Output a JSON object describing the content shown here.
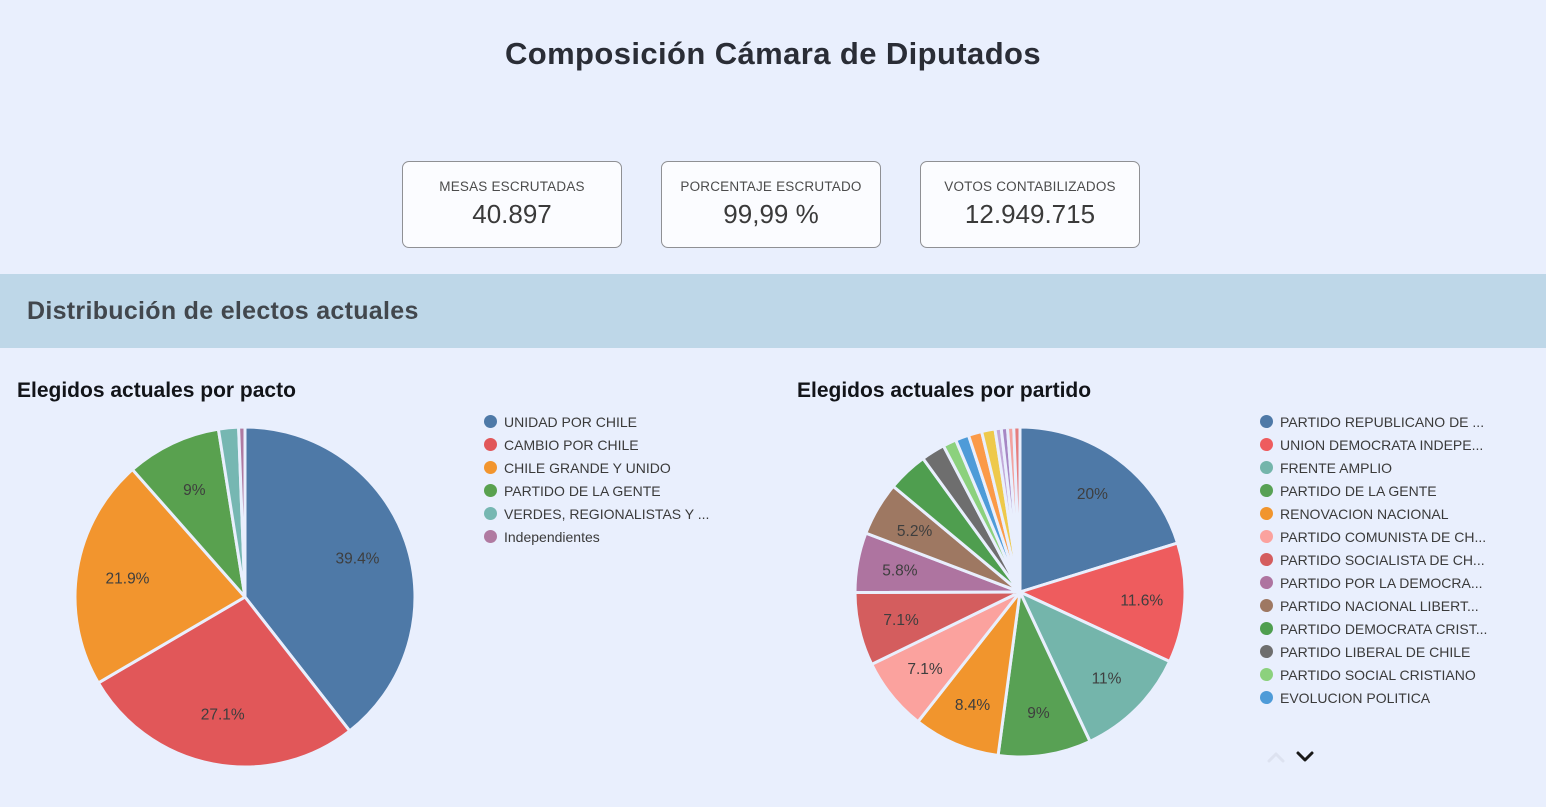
{
  "page_title": "Composición Cámara de Diputados",
  "stats": [
    {
      "label": "MESAS ESCRUTADAS",
      "value": "40.897"
    },
    {
      "label": "PORCENTAJE ESCRUTADO",
      "value": "99,99 %"
    },
    {
      "label": "VOTOS CONTABILIZADOS",
      "value": "12.949.715"
    }
  ],
  "section_title": "Distribución de electos actuales",
  "colors": {
    "background": "#e9effd",
    "band": "#bed7e8",
    "slice_gap": "#e9effd",
    "slice_label": "#3e3e3e"
  },
  "icons": {
    "legend_scroll_up": "chevron-up-icon",
    "legend_scroll_down": "chevron-down-icon"
  },
  "chart_data": [
    {
      "type": "pie",
      "title": "Elegidos actuales por pacto",
      "legend_position": "right",
      "slices": [
        {
          "label": "UNIDAD POR CHILE",
          "value": 39.4,
          "display": "39.4%",
          "color": "#4e79a7",
          "in_legend": true
        },
        {
          "label": "CAMBIO POR CHILE",
          "value": 27.1,
          "display": "27.1%",
          "color": "#e15759",
          "in_legend": true
        },
        {
          "label": "CHILE GRANDE Y UNIDO",
          "value": 21.9,
          "display": "21.9%",
          "color": "#f2952e",
          "in_legend": true
        },
        {
          "label": "PARTIDO DE LA GENTE",
          "value": 9,
          "display": "9%",
          "color": "#59a14f",
          "in_legend": true
        },
        {
          "label": "VERDES, REGIONALISTAS Y ...",
          "value": 1.9,
          "display": null,
          "color": "#76b7b2",
          "in_legend": true
        },
        {
          "label": "Independientes",
          "value": 0.6,
          "display": null,
          "color": "#b07aa1",
          "in_legend": true
        }
      ]
    },
    {
      "type": "pie",
      "title": "Elegidos actuales por partido",
      "legend_position": "right",
      "legend_scrollable": true,
      "slices": [
        {
          "label": "PARTIDO REPUBLICANO DE ...",
          "value": 20,
          "display": "20%",
          "color": "#4e79a7",
          "in_legend": true
        },
        {
          "label": "UNION DEMOCRATA INDEPE...",
          "value": 11.6,
          "display": "11.6%",
          "color": "#ee5c5e",
          "in_legend": true
        },
        {
          "label": "FRENTE AMPLIO",
          "value": 11,
          "display": "11%",
          "color": "#74b5ab",
          "in_legend": true
        },
        {
          "label": "PARTIDO DE LA GENTE",
          "value": 9,
          "display": "9%",
          "color": "#58a154",
          "in_legend": true
        },
        {
          "label": "RENOVACION NACIONAL",
          "value": 8.4,
          "display": "8.4%",
          "color": "#f1952d",
          "in_legend": true
        },
        {
          "label": "PARTIDO COMUNISTA DE CH...",
          "value": 7.1,
          "display": "7.1%",
          "color": "#fba29e",
          "in_legend": true
        },
        {
          "label": "PARTIDO SOCIALISTA DE CH...",
          "value": 7.1,
          "display": "7.1%",
          "color": "#d45d5e",
          "in_legend": true
        },
        {
          "label": "PARTIDO POR LA DEMOCRA...",
          "value": 5.8,
          "display": "5.8%",
          "color": "#ae74a0",
          "in_legend": true
        },
        {
          "label": "PARTIDO NACIONAL LIBERT...",
          "value": 5.2,
          "display": "5.2%",
          "color": "#9e7862",
          "in_legend": true
        },
        {
          "label": "PARTIDO DEMOCRATA CRIST...",
          "value": 3.9,
          "display": null,
          "color": "#4f9e4f",
          "in_legend": true
        },
        {
          "label": "PARTIDO LIBERAL DE CHILE",
          "value": 2.3,
          "display": null,
          "color": "#6e6e6e",
          "in_legend": true
        },
        {
          "label": "PARTIDO SOCIAL CRISTIANO",
          "value": 1.3,
          "display": null,
          "color": "#8cd17d",
          "in_legend": true
        },
        {
          "label": "EVOLUCION POLITICA",
          "value": 1.3,
          "display": null,
          "color": "#4e9bd8",
          "in_legend": true
        },
        {
          "label": "",
          "value": 1.3,
          "display": null,
          "color": "#fb9a48",
          "in_legend": false
        },
        {
          "label": "",
          "value": 1.3,
          "display": null,
          "color": "#eec94b",
          "in_legend": false
        },
        {
          "label": "",
          "value": 0.6,
          "display": null,
          "color": "#c2a9d9",
          "in_legend": false
        },
        {
          "label": "",
          "value": 0.6,
          "display": null,
          "color": "#a687c4",
          "in_legend": false
        },
        {
          "label": "",
          "value": 0.6,
          "display": null,
          "color": "#f2a3a0",
          "in_legend": false
        },
        {
          "label": "",
          "value": 0.6,
          "display": null,
          "color": "#e57e7e",
          "in_legend": false
        }
      ]
    }
  ]
}
